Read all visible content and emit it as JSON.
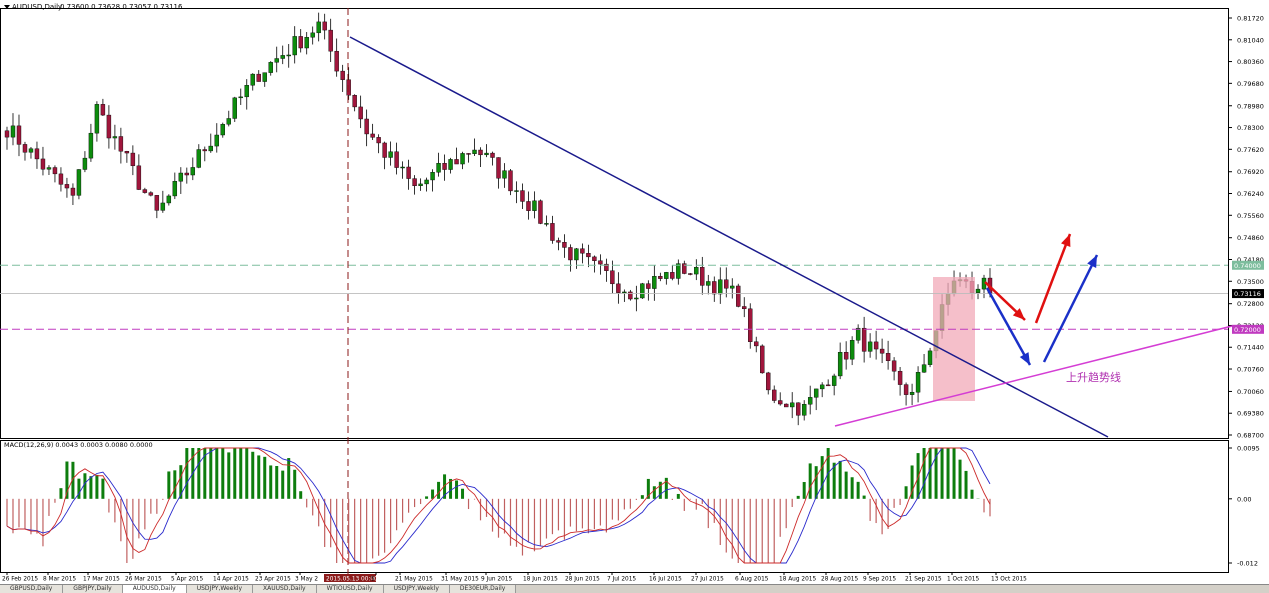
{
  "window": {
    "title": "AUDUSD,Daily",
    "ohlc": "0.73600 0.73628 0.73057 0.73116"
  },
  "tabs": [
    "GBPUSD,Daily",
    "GBPJPY,Daily",
    "AUDUSD,Daily",
    "USDJPY,Weekly",
    "XAUUSD,Daily",
    "WTIOUSD,Daily",
    "USDJPY,Weekly",
    "DE30EUR,Daily"
  ],
  "active_tab": 2,
  "colors": {
    "bull": "#0d8c0d",
    "bear": "#a0163c",
    "trendline_down": "#1a1a8c",
    "trendline_up": "#d43dd4",
    "resistance_dash": "#7dbd9d",
    "support_dash": "#c03ac0",
    "macd_hist_pos": "#0d7d0d",
    "macd_hist_neg": "#c06060",
    "macd_line": "#2a2acc",
    "signal_line": "#cc2a2a",
    "highlight_zone": "#f2aab8",
    "arrow_red": "#e01010",
    "arrow_blue": "#1a30c8"
  },
  "chart_data": {
    "type": "candlestick",
    "symbol": "AUDUSD",
    "timeframe": "Daily",
    "price_axis_ticks": [
      "0.81720",
      "0.81040",
      "0.80360",
      "0.79680",
      "0.78980",
      "0.78300",
      "0.77620",
      "0.76920",
      "0.76240",
      "0.75560",
      "0.74860",
      "0.74180",
      "0.73500",
      "0.72800",
      "0.72120",
      "0.71440",
      "0.70760",
      "0.70060",
      "0.69380",
      "0.68700"
    ],
    "price_ylim": [
      0.687,
      0.8172
    ],
    "price_labels": {
      "resistance": "0.74000",
      "current": "0.73116",
      "support": "0.72000"
    },
    "date_ticks": [
      "26 Feb 2015",
      "8 Mar 2015",
      "17 Mar 2015",
      "26 Mar 2015",
      "5 Apr 2015",
      "14 Apr 2015",
      "23 Apr 2015",
      "3 May 2",
      "2015.05.13 00:00",
      "5",
      "21 May 2015",
      "31 May 2015",
      "9 Jun 2015",
      "18 Jun 2015",
      "28 Jun 2015",
      "7 Jul 2015",
      "16 Jul 2015",
      "27 Jul 2015",
      "6 Aug 2015",
      "18 Aug 2015",
      "28 Aug 2015",
      "9 Sep 2015",
      "21 Sep 2015",
      "1 Oct 2015",
      "13 Oct 2015"
    ],
    "key_points": [
      {
        "date": "26 Feb 2015",
        "close": 0.783
      },
      {
        "date": "12 Mar 2015",
        "close": 0.761
      },
      {
        "date": "19 Mar 2015",
        "close": 0.789
      },
      {
        "date": "2 Apr 2015",
        "close": 0.756
      },
      {
        "date": "27 Apr 2015",
        "close": 0.8
      },
      {
        "date": "13 May 2015",
        "close": 0.815
      },
      {
        "date": "25 May 2015",
        "close": 0.782
      },
      {
        "date": "4 Jun 2015",
        "close": 0.764
      },
      {
        "date": "18 Jun 2015",
        "close": 0.777
      },
      {
        "date": "29 Jun 2015",
        "close": 0.762
      },
      {
        "date": "8 Jul 2015",
        "close": 0.745
      },
      {
        "date": "24 Jul 2015",
        "close": 0.732
      },
      {
        "date": "6 Aug 2015",
        "close": 0.739
      },
      {
        "date": "19 Aug 2015",
        "close": 0.73
      },
      {
        "date": "26 Aug 2015",
        "close": 0.7
      },
      {
        "date": "3 Sep 2015",
        "close": 0.695
      },
      {
        "date": "17 Sep 2015",
        "close": 0.718
      },
      {
        "date": "29 Sep 2015",
        "close": 0.699
      },
      {
        "date": "9 Oct 2015",
        "close": 0.736
      },
      {
        "date": "13 Oct 2015",
        "close": 0.7312
      }
    ],
    "annotation": "上升趋势线",
    "macd": {
      "label": "MACD(12,26,9) 0.0043 0.0003 0.0080 0.0000",
      "ticks": [
        "0.0095",
        "0.00",
        "-0.012"
      ],
      "ylim": [
        -0.012,
        0.0095
      ]
    }
  }
}
